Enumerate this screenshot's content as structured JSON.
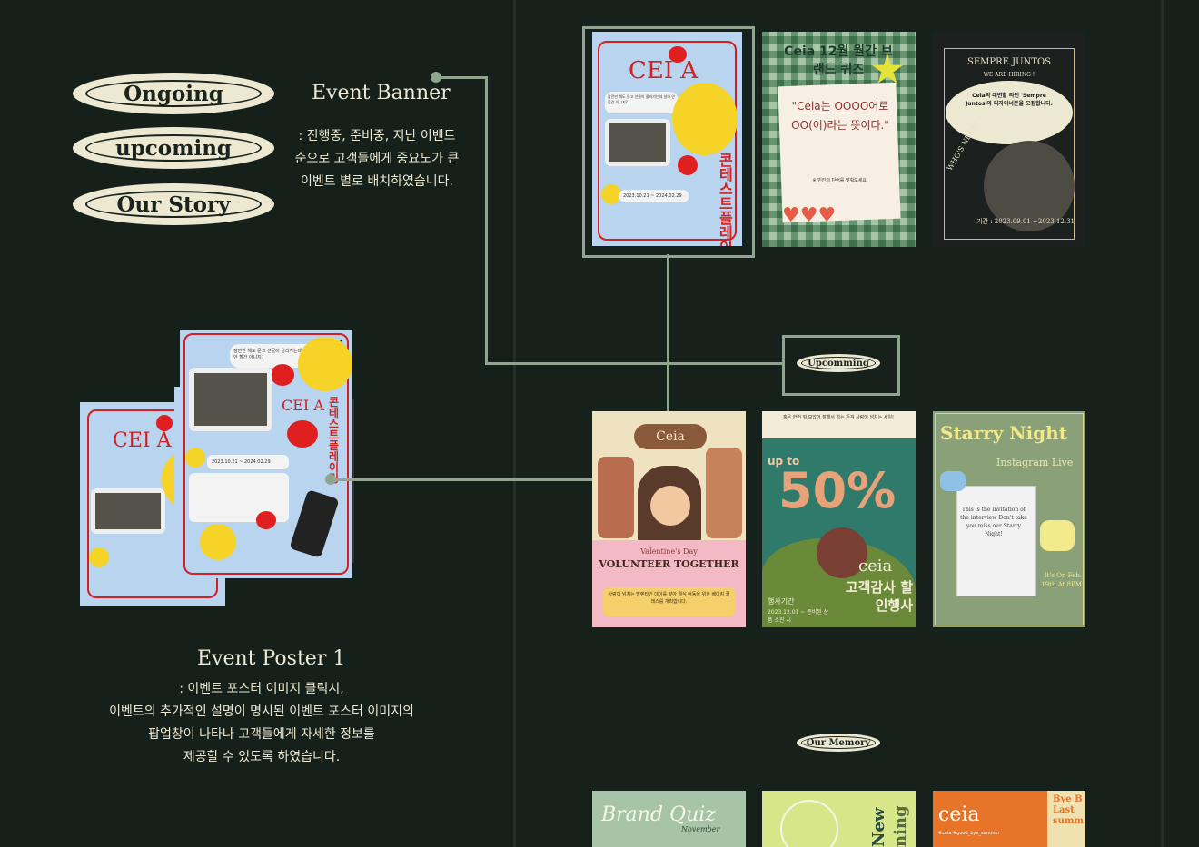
{
  "nav": {
    "ongoing": "Ongoing",
    "upcoming": "upcoming",
    "our_story": "Our Story"
  },
  "event_banner": {
    "title": "Event Banner",
    "desc_lines": [
      ": 진행중, 준비중, 지난 이벤트",
      "순으로 고객들에게 중요도가 큰",
      "이벤트 별로 배치하였습니다."
    ]
  },
  "event_poster": {
    "title": "Event Poster 1",
    "desc_lines": [
      ": 이벤트 포스터 이미지 클릭시,",
      "이벤트의 추가적인 설명이 명시된 이벤트 포스터 이미지의",
      "팝업창이 나타나 고객들에게 자세한 정보를",
      "제공할 수 있도록 하였습니다."
    ]
  },
  "section_labels": {
    "upcomming": "Upcomming",
    "our_memory": "Our Memory"
  },
  "posters": {
    "p1": {
      "brand": "CEI A",
      "vertical": "콘테스트 플레이링",
      "date": "2023.10.21 ~ 2024.02.29",
      "bubble": "잠깐만 해도 문고 선물이 올라가는데 실어 안 할건 아니지?"
    },
    "p2": {
      "header": "Ceia 12월 월간 브랜드 퀴즈",
      "quote": "\"Ceia는 OOOO어로 OO(이)라는 뜻이다.\"",
      "hint": "※ 빈칸의 단어를 맞춰보세요."
    },
    "p3": {
      "top": "SEMPRE JUNTOS",
      "sub": "WE ARE HIRING !",
      "body": "Ceia의 대변할 라인 'Sempre Juntos'의 디자이너분을 모집합니다.",
      "side": "WHO'S NEXT?",
      "period": "기간 : 2023.09.01 ~2023.12.31"
    },
    "p4": {
      "brand": "Ceia",
      "sub": "Valentine's Day",
      "title": "VOLUNTEER TOGETHER",
      "body": "사랑이 넘치는 발렌타인 데이를 맞아 결식 아동을 위한 베이킹 클래스를 개최합니다."
    },
    "p5": {
      "top": "혹은 한번 뭐 보았어 잘해서 하는 뜬걱 사랑이 넘치는 세일!",
      "upto": "up to",
      "pct": "50%",
      "brand": "ceia",
      "title": "고객감사 할인행사",
      "period_label": "행사기간",
      "period": "2023.12.01 ~ 준비된 상품 소진 시"
    },
    "p6": {
      "title": "Starry Night",
      "sub": "Instagram Live",
      "body": "This is the invitation of the interview Don't take you miss our Starry Night!",
      "side": "It's On Feb. 19th At 8PM"
    },
    "p7": {
      "title": "Brand Quiz",
      "sub": "November"
    },
    "p8": {
      "title": "New",
      "sub": "ning"
    },
    "p9": {
      "brand": "ceia",
      "tags": "#ceia #good_bye_summer",
      "side": "Bye B Last summ"
    }
  },
  "colors": {
    "bg": "#16201a",
    "cream": "#ece8d2",
    "line": "#8fa590",
    "red": "#e02020"
  }
}
